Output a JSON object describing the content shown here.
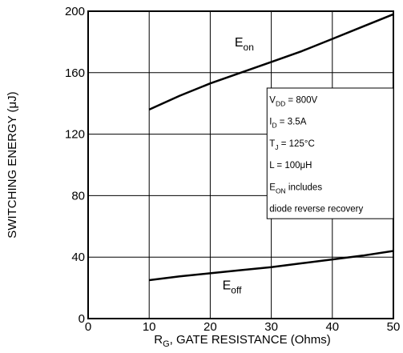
{
  "chart_data": {
    "type": "line",
    "xlabel_prefix": "R",
    "xlabel_sub": "G",
    "xlabel_rest": ", GATE RESISTANCE (Ohms)",
    "ylabel": "SWITCHING ENERGY (μJ)",
    "xlim": [
      0,
      50
    ],
    "ylim": [
      0,
      200
    ],
    "x_ticks": [
      "0",
      "10",
      "20",
      "30",
      "40",
      "50"
    ],
    "y_ticks": [
      "0",
      "40",
      "80",
      "120",
      "160",
      "200"
    ],
    "grid": true,
    "series": [
      {
        "name": "Eon",
        "label_main": "E",
        "label_sub": "on",
        "x": [
          10,
          15,
          20,
          25,
          30,
          35,
          40,
          45,
          50
        ],
        "y": [
          136,
          145,
          153,
          160,
          167,
          174,
          182,
          190,
          198
        ]
      },
      {
        "name": "Eoff",
        "label_main": "E",
        "label_sub": "off",
        "x": [
          10,
          15,
          20,
          25,
          30,
          35,
          40,
          45,
          50
        ],
        "y": [
          25,
          27.5,
          29.5,
          31.5,
          33.5,
          36,
          38.5,
          41,
          44
        ]
      }
    ],
    "conditions": {
      "vdd_main": "V",
      "vdd_sub": "DD",
      "vdd_val": " = 800V",
      "id_main": "I",
      "id_sub": "D",
      "id_val": " = 3.5A",
      "tj_main": "T",
      "tj_sub": "J",
      "tj_val": " = 125°C",
      "l_line": "L = 100μH",
      "eon_main": "E",
      "eon_sub": "ON",
      "eon_rest": "  includes",
      "recovery": "diode  reverse  recovery"
    }
  }
}
